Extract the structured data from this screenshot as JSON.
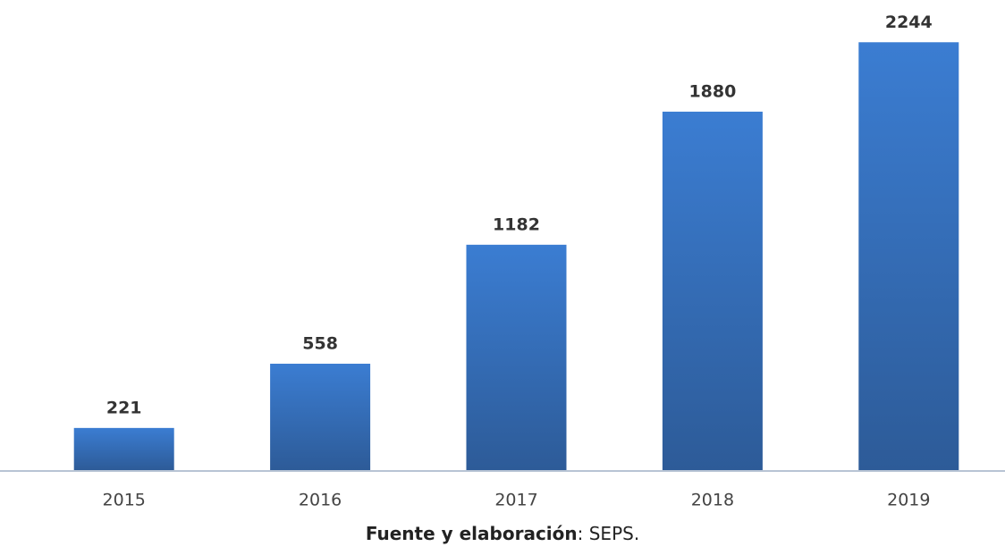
{
  "chart_data": {
    "type": "bar",
    "categories": [
      "2015",
      "2016",
      "2017",
      "2018",
      "2019"
    ],
    "values": [
      221,
      558,
      1182,
      1880,
      2244
    ],
    "color": "#3a7bd0",
    "ylim": [
      0,
      2250
    ],
    "source_label": "Fuente y elaboración",
    "source_text": ": SEPS."
  }
}
